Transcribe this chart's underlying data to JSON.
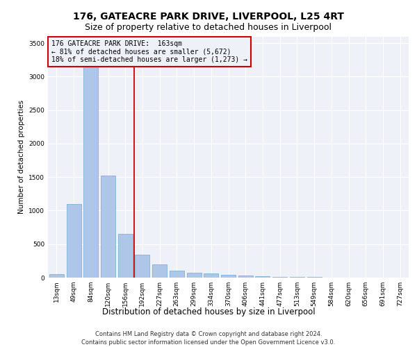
{
  "title": "176, GATEACRE PARK DRIVE, LIVERPOOL, L25 4RT",
  "subtitle": "Size of property relative to detached houses in Liverpool",
  "xlabel": "Distribution of detached houses by size in Liverpool",
  "ylabel": "Number of detached properties",
  "categories": [
    "13sqm",
    "49sqm",
    "84sqm",
    "120sqm",
    "156sqm",
    "192sqm",
    "227sqm",
    "263sqm",
    "299sqm",
    "334sqm",
    "370sqm",
    "406sqm",
    "441sqm",
    "477sqm",
    "513sqm",
    "549sqm",
    "584sqm",
    "620sqm",
    "656sqm",
    "691sqm",
    "727sqm"
  ],
  "values": [
    50,
    1100,
    3300,
    1520,
    650,
    340,
    200,
    100,
    75,
    60,
    45,
    30,
    20,
    12,
    8,
    6,
    4,
    3,
    2,
    1,
    1
  ],
  "bar_color": "#aec6e8",
  "bar_edge_color": "#6aaad4",
  "marker_line_color": "#cc0000",
  "annotation_box_color": "#cc0000",
  "annotation_lines": [
    "176 GATEACRE PARK DRIVE:  163sqm",
    "← 81% of detached houses are smaller (5,672)",
    "18% of semi-detached houses are larger (1,273) →"
  ],
  "background_color": "#eef2f8",
  "grid_color": "#ffffff",
  "ylim": [
    0,
    3600
  ],
  "yticks": [
    0,
    500,
    1000,
    1500,
    2000,
    2500,
    3000,
    3500
  ],
  "footer_line1": "Contains HM Land Registry data © Crown copyright and database right 2024.",
  "footer_line2": "Contains public sector information licensed under the Open Government Licence v3.0.",
  "title_fontsize": 10,
  "subtitle_fontsize": 9,
  "xlabel_fontsize": 8.5,
  "ylabel_fontsize": 7.5,
  "tick_fontsize": 6.5,
  "footer_fontsize": 6,
  "ann_fontsize": 7
}
